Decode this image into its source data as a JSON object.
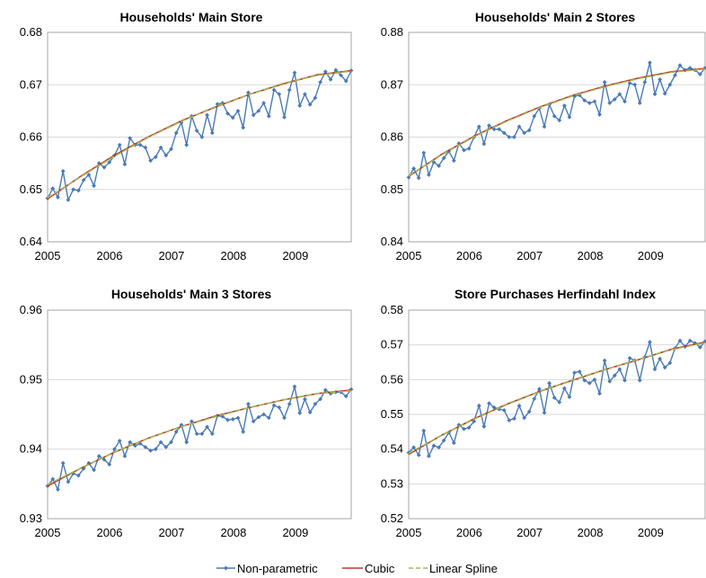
{
  "colors": {
    "nonparametric": "#4a7ab5",
    "cubic": "#c0392b",
    "spline": "#9bbb59",
    "grid": "#d9d9d9",
    "frame": "#a6a6a6"
  },
  "legend": [
    {
      "label": "Non-parametric",
      "style": "line-marker"
    },
    {
      "label": "Cubic",
      "style": "solid"
    },
    {
      "label": "Linear Spline",
      "style": "dashed"
    }
  ],
  "chart_data": [
    {
      "type": "line",
      "title": "Households' Main Store",
      "xlim": [
        2005,
        2009.9
      ],
      "xticks": [
        2005,
        2006,
        2007,
        2008,
        2009
      ],
      "ylim": [
        0.64,
        0.68
      ],
      "yticks": [
        "0.64",
        "0.65",
        "0.66",
        "0.67",
        "0.68"
      ],
      "grid": true,
      "series": [
        {
          "name": "Non-parametric",
          "style": "line-marker",
          "values": [
            0.6483,
            0.6502,
            0.6485,
            0.6535,
            0.648,
            0.65,
            0.6498,
            0.6518,
            0.6528,
            0.6507,
            0.655,
            0.6542,
            0.6552,
            0.6565,
            0.6585,
            0.6548,
            0.6598,
            0.6585,
            0.6585,
            0.658,
            0.6555,
            0.6562,
            0.658,
            0.6565,
            0.6577,
            0.6608,
            0.6628,
            0.6585,
            0.664,
            0.6612,
            0.66,
            0.6642,
            0.6608,
            0.6663,
            0.6665,
            0.6645,
            0.6637,
            0.665,
            0.6618,
            0.6685,
            0.6642,
            0.665,
            0.6665,
            0.664,
            0.669,
            0.6682,
            0.6638,
            0.669,
            0.6723,
            0.666,
            0.6682,
            0.6662,
            0.6675,
            0.6705,
            0.6725,
            0.671,
            0.6728,
            0.6718,
            0.6707,
            0.6727
          ]
        },
        {
          "name": "Cubic",
          "style": "solid",
          "values": [
            0.6482,
            0.6526,
            0.6566,
            0.6601,
            0.6632,
            0.6658,
            0.6682,
            0.6702,
            0.6719,
            0.6727
          ]
        },
        {
          "name": "Linear Spline",
          "style": "dashed",
          "values": [
            0.6484,
            0.6525,
            0.6564,
            0.66,
            0.6631,
            0.6659,
            0.6682,
            0.6703,
            0.6718,
            0.6726
          ]
        }
      ]
    },
    {
      "type": "line",
      "title": "Households' Main 2 Stores",
      "xlim": [
        2005,
        2009.9
      ],
      "xticks": [
        2005,
        2006,
        2007,
        2008,
        2009
      ],
      "ylim": [
        0.84,
        0.88
      ],
      "yticks": [
        "0.84",
        "0.85",
        "0.86",
        "0.87",
        "0.88"
      ],
      "grid": true,
      "series": [
        {
          "name": "Non-parametric",
          "style": "line-marker",
          "values": [
            0.8523,
            0.854,
            0.8522,
            0.857,
            0.8528,
            0.8552,
            0.8545,
            0.856,
            0.8573,
            0.8555,
            0.8588,
            0.8575,
            0.8578,
            0.86,
            0.862,
            0.8587,
            0.8622,
            0.8615,
            0.8615,
            0.8608,
            0.86,
            0.86,
            0.862,
            0.8608,
            0.8613,
            0.864,
            0.8655,
            0.862,
            0.8662,
            0.864,
            0.8632,
            0.866,
            0.8638,
            0.8678,
            0.868,
            0.867,
            0.8665,
            0.8668,
            0.8643,
            0.8705,
            0.8665,
            0.8672,
            0.8682,
            0.8668,
            0.8703,
            0.87,
            0.8665,
            0.8705,
            0.8742,
            0.8682,
            0.871,
            0.8683,
            0.87,
            0.8718,
            0.8737,
            0.8728,
            0.8732,
            0.8728,
            0.872,
            0.8732
          ]
        },
        {
          "name": "Cubic",
          "style": "solid",
          "values": [
            0.8525,
            0.8567,
            0.8602,
            0.8632,
            0.8658,
            0.868,
            0.8698,
            0.8713,
            0.8725,
            0.8731
          ]
        },
        {
          "name": "Linear Spline",
          "style": "dashed",
          "values": [
            0.8526,
            0.8566,
            0.8601,
            0.8631,
            0.8657,
            0.8679,
            0.8697,
            0.8712,
            0.8724,
            0.873
          ]
        }
      ]
    },
    {
      "type": "line",
      "title": "Households' Main 3 Stores",
      "xlim": [
        2005,
        2009.9
      ],
      "xticks": [
        2005,
        2006,
        2007,
        2008,
        2009
      ],
      "ylim": [
        0.93,
        0.96
      ],
      "yticks": [
        "0.93",
        "0.94",
        "0.95",
        "0.96"
      ],
      "grid": true,
      "series": [
        {
          "name": "Non-parametric",
          "style": "line-marker",
          "values": [
            0.9347,
            0.9357,
            0.9342,
            0.938,
            0.9353,
            0.9365,
            0.9362,
            0.9372,
            0.938,
            0.937,
            0.939,
            0.9385,
            0.9378,
            0.94,
            0.9412,
            0.939,
            0.941,
            0.9405,
            0.9408,
            0.9403,
            0.9398,
            0.94,
            0.941,
            0.9403,
            0.941,
            0.9425,
            0.9435,
            0.941,
            0.944,
            0.9422,
            0.9422,
            0.9432,
            0.9422,
            0.9448,
            0.9447,
            0.9442,
            0.9443,
            0.9445,
            0.9425,
            0.9465,
            0.944,
            0.9446,
            0.945,
            0.9445,
            0.9463,
            0.946,
            0.9445,
            0.9465,
            0.949,
            0.9452,
            0.9472,
            0.9453,
            0.9465,
            0.9472,
            0.9485,
            0.948,
            0.9482,
            0.9482,
            0.9476,
            0.9486
          ]
        },
        {
          "name": "Cubic",
          "style": "solid",
          "values": [
            0.9347,
            0.9373,
            0.9396,
            0.9416,
            0.9433,
            0.9448,
            0.946,
            0.9471,
            0.948,
            0.9485
          ]
        },
        {
          "name": "Linear Spline",
          "style": "dashed",
          "values": [
            0.9349,
            0.9373,
            0.9396,
            0.9416,
            0.9433,
            0.9447,
            0.946,
            0.9471,
            0.948,
            0.9484
          ]
        }
      ]
    },
    {
      "type": "line",
      "title": "Store Purchases Herfindahl Index",
      "xlim": [
        2005,
        2009.9
      ],
      "xticks": [
        2005,
        2006,
        2007,
        2008,
        2009
      ],
      "ylim": [
        0.52,
        0.58
      ],
      "yticks": [
        "0.52",
        "0.53",
        "0.54",
        "0.55",
        "0.56",
        "0.57",
        "0.58"
      ],
      "grid": true,
      "series": [
        {
          "name": "Non-parametric",
          "style": "line-marker",
          "values": [
            0.539,
            0.5405,
            0.5383,
            0.5453,
            0.538,
            0.541,
            0.5405,
            0.5425,
            0.5448,
            0.5418,
            0.547,
            0.5458,
            0.5462,
            0.548,
            0.5525,
            0.5465,
            0.5532,
            0.552,
            0.5515,
            0.5512,
            0.5483,
            0.5488,
            0.5525,
            0.549,
            0.5508,
            0.5545,
            0.5573,
            0.5505,
            0.559,
            0.5548,
            0.5535,
            0.5575,
            0.555,
            0.562,
            0.5623,
            0.5598,
            0.559,
            0.56,
            0.556,
            0.5655,
            0.5595,
            0.5612,
            0.563,
            0.5598,
            0.5662,
            0.5655,
            0.5598,
            0.5665,
            0.5708,
            0.563,
            0.566,
            0.5635,
            0.5648,
            0.569,
            0.5712,
            0.5695,
            0.5712,
            0.5705,
            0.5693,
            0.571
          ]
        },
        {
          "name": "Cubic",
          "style": "solid",
          "values": [
            0.5385,
            0.544,
            0.5488,
            0.553,
            0.5567,
            0.5599,
            0.563,
            0.5658,
            0.5688,
            0.5708
          ]
        },
        {
          "name": "Linear Spline",
          "style": "dashed",
          "values": [
            0.5388,
            0.544,
            0.5487,
            0.5529,
            0.5566,
            0.56,
            0.563,
            0.5659,
            0.5687,
            0.5706
          ]
        }
      ]
    }
  ]
}
